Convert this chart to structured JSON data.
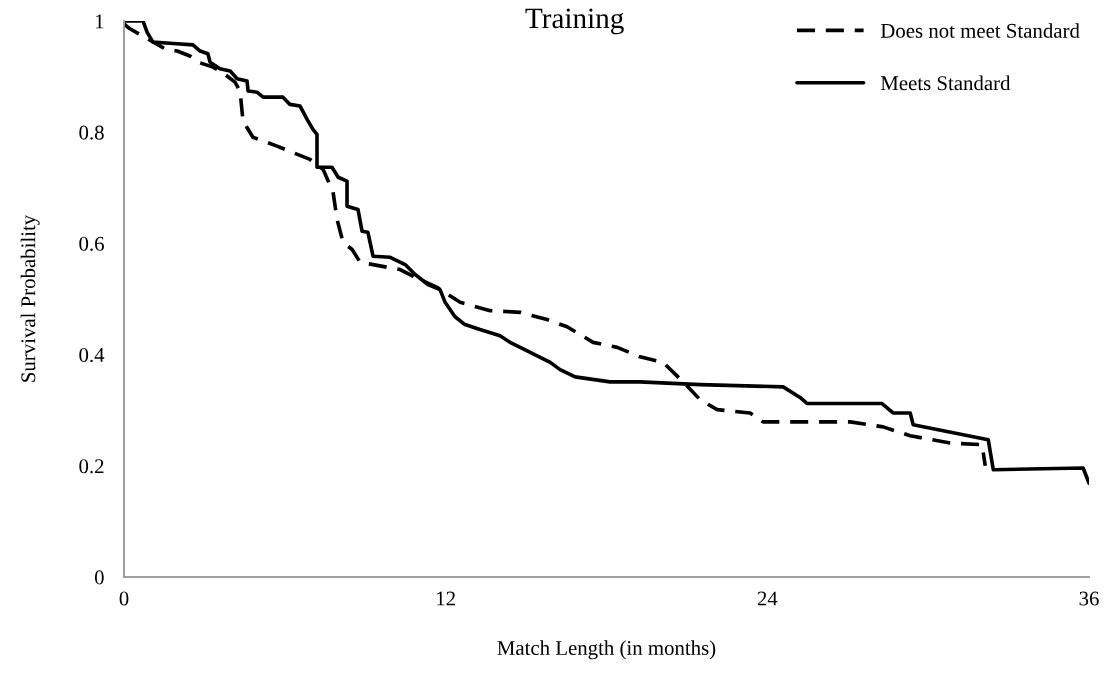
{
  "chart_data": {
    "type": "line",
    "title": "Training",
    "xlabel": "Match Length (in months)",
    "ylabel": "Survival Probability",
    "xlim": [
      0,
      36
    ],
    "xticks": [
      0,
      12,
      24,
      36
    ],
    "ylim": [
      0,
      1
    ],
    "yticks": [
      0,
      0.2,
      0.4,
      0.6,
      0.8,
      1
    ],
    "grid": false,
    "legend": "top right",
    "marker": "none",
    "series": [
      {
        "name": "Does not meet Standard",
        "color": "#000000",
        "line_style": "dashed",
        "x": [
          0,
          0.22,
          1.53,
          1.98,
          2.46,
          2.76,
          3.32,
          3.66,
          4.14,
          4.33,
          4.44,
          4.81,
          5.71,
          6.94,
          7.43,
          7.8,
          7.95,
          8.17,
          8.51,
          8.81,
          10.3,
          10.78,
          11.68,
          12.54,
          13.66,
          14.78,
          15.78,
          16.53,
          17.5,
          18.4,
          19.25,
          20.11,
          20.86,
          21.49,
          22.13,
          23.36,
          23.84,
          27.09,
          28.32,
          29.33,
          30.82,
          32.01,
          32.13
        ],
        "values": [
          0.995,
          0.986,
          0.95,
          0.946,
          0.937,
          0.926,
          0.917,
          0.908,
          0.89,
          0.874,
          0.82,
          0.791,
          0.775,
          0.751,
          0.733,
          0.692,
          0.643,
          0.602,
          0.589,
          0.566,
          0.553,
          0.541,
          0.521,
          0.494,
          0.479,
          0.476,
          0.463,
          0.45,
          0.422,
          0.413,
          0.396,
          0.386,
          0.351,
          0.319,
          0.301,
          0.295,
          0.279,
          0.279,
          0.27,
          0.254,
          0.241,
          0.238,
          0.2
        ]
      },
      {
        "name": "Meets Standard",
        "color": "#000000",
        "line_style": "solid",
        "x": [
          0,
          0.71,
          0.86,
          1.08,
          1.72,
          2.57,
          2.84,
          3.13,
          3.21,
          3.58,
          3.96,
          4.22,
          4.59,
          4.63,
          4.96,
          5.19,
          5.93,
          6.19,
          6.57,
          6.83,
          7.05,
          7.2,
          7.2,
          7.76,
          7.99,
          8.32,
          8.32,
          8.73,
          8.88,
          9.1,
          9.29,
          9.93,
          10.49,
          10.86,
          11.34,
          11.79,
          11.98,
          12.35,
          12.72,
          13.28,
          14.03,
          14.4,
          14.78,
          15.9,
          16.27,
          16.83,
          18.13,
          19.25,
          21.49,
          24.59,
          25.22,
          25.49,
          28.28,
          28.69,
          29.33,
          29.44,
          32.24,
          32.43,
          35.78,
          36
        ],
        "values": [
          1,
          1,
          0.98,
          0.962,
          0.96,
          0.957,
          0.946,
          0.941,
          0.926,
          0.914,
          0.91,
          0.896,
          0.892,
          0.874,
          0.872,
          0.863,
          0.863,
          0.85,
          0.847,
          0.823,
          0.805,
          0.796,
          0.737,
          0.737,
          0.719,
          0.712,
          0.667,
          0.661,
          0.622,
          0.62,
          0.577,
          0.575,
          0.562,
          0.544,
          0.526,
          0.517,
          0.494,
          0.468,
          0.454,
          0.445,
          0.434,
          0.422,
          0.413,
          0.386,
          0.373,
          0.36,
          0.351,
          0.351,
          0.346,
          0.342,
          0.323,
          0.312,
          0.312,
          0.295,
          0.295,
          0.274,
          0.247,
          0.193,
          0.196,
          0.169
        ]
      }
    ]
  }
}
